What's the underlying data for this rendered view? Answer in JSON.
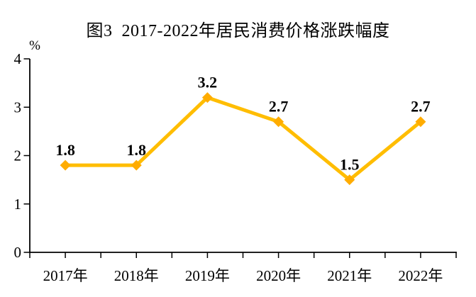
{
  "page": {
    "background": "#ffffff"
  },
  "chart_data": {
    "type": "line",
    "title": "图3  2017-2022年居民消费价格涨跌幅度",
    "ylabel": "%",
    "xlabel": "",
    "categories": [
      "2017年",
      "2018年",
      "2019年",
      "2020年",
      "2021年",
      "2022年"
    ],
    "values": [
      1.8,
      1.8,
      3.2,
      2.7,
      1.5,
      2.7
    ],
    "data_labels": [
      "1.8",
      "1.8",
      "3.2",
      "2.7",
      "1.5",
      "2.7"
    ],
    "yticks": [
      0,
      1,
      2,
      3,
      4
    ],
    "ylim": [
      0,
      4
    ],
    "grid": false,
    "legend": "none",
    "line_color": "#FFBD00",
    "marker_color": "#FFAC00",
    "marker": "diamond",
    "axis_color": "#000000",
    "text_color": "#000000"
  }
}
